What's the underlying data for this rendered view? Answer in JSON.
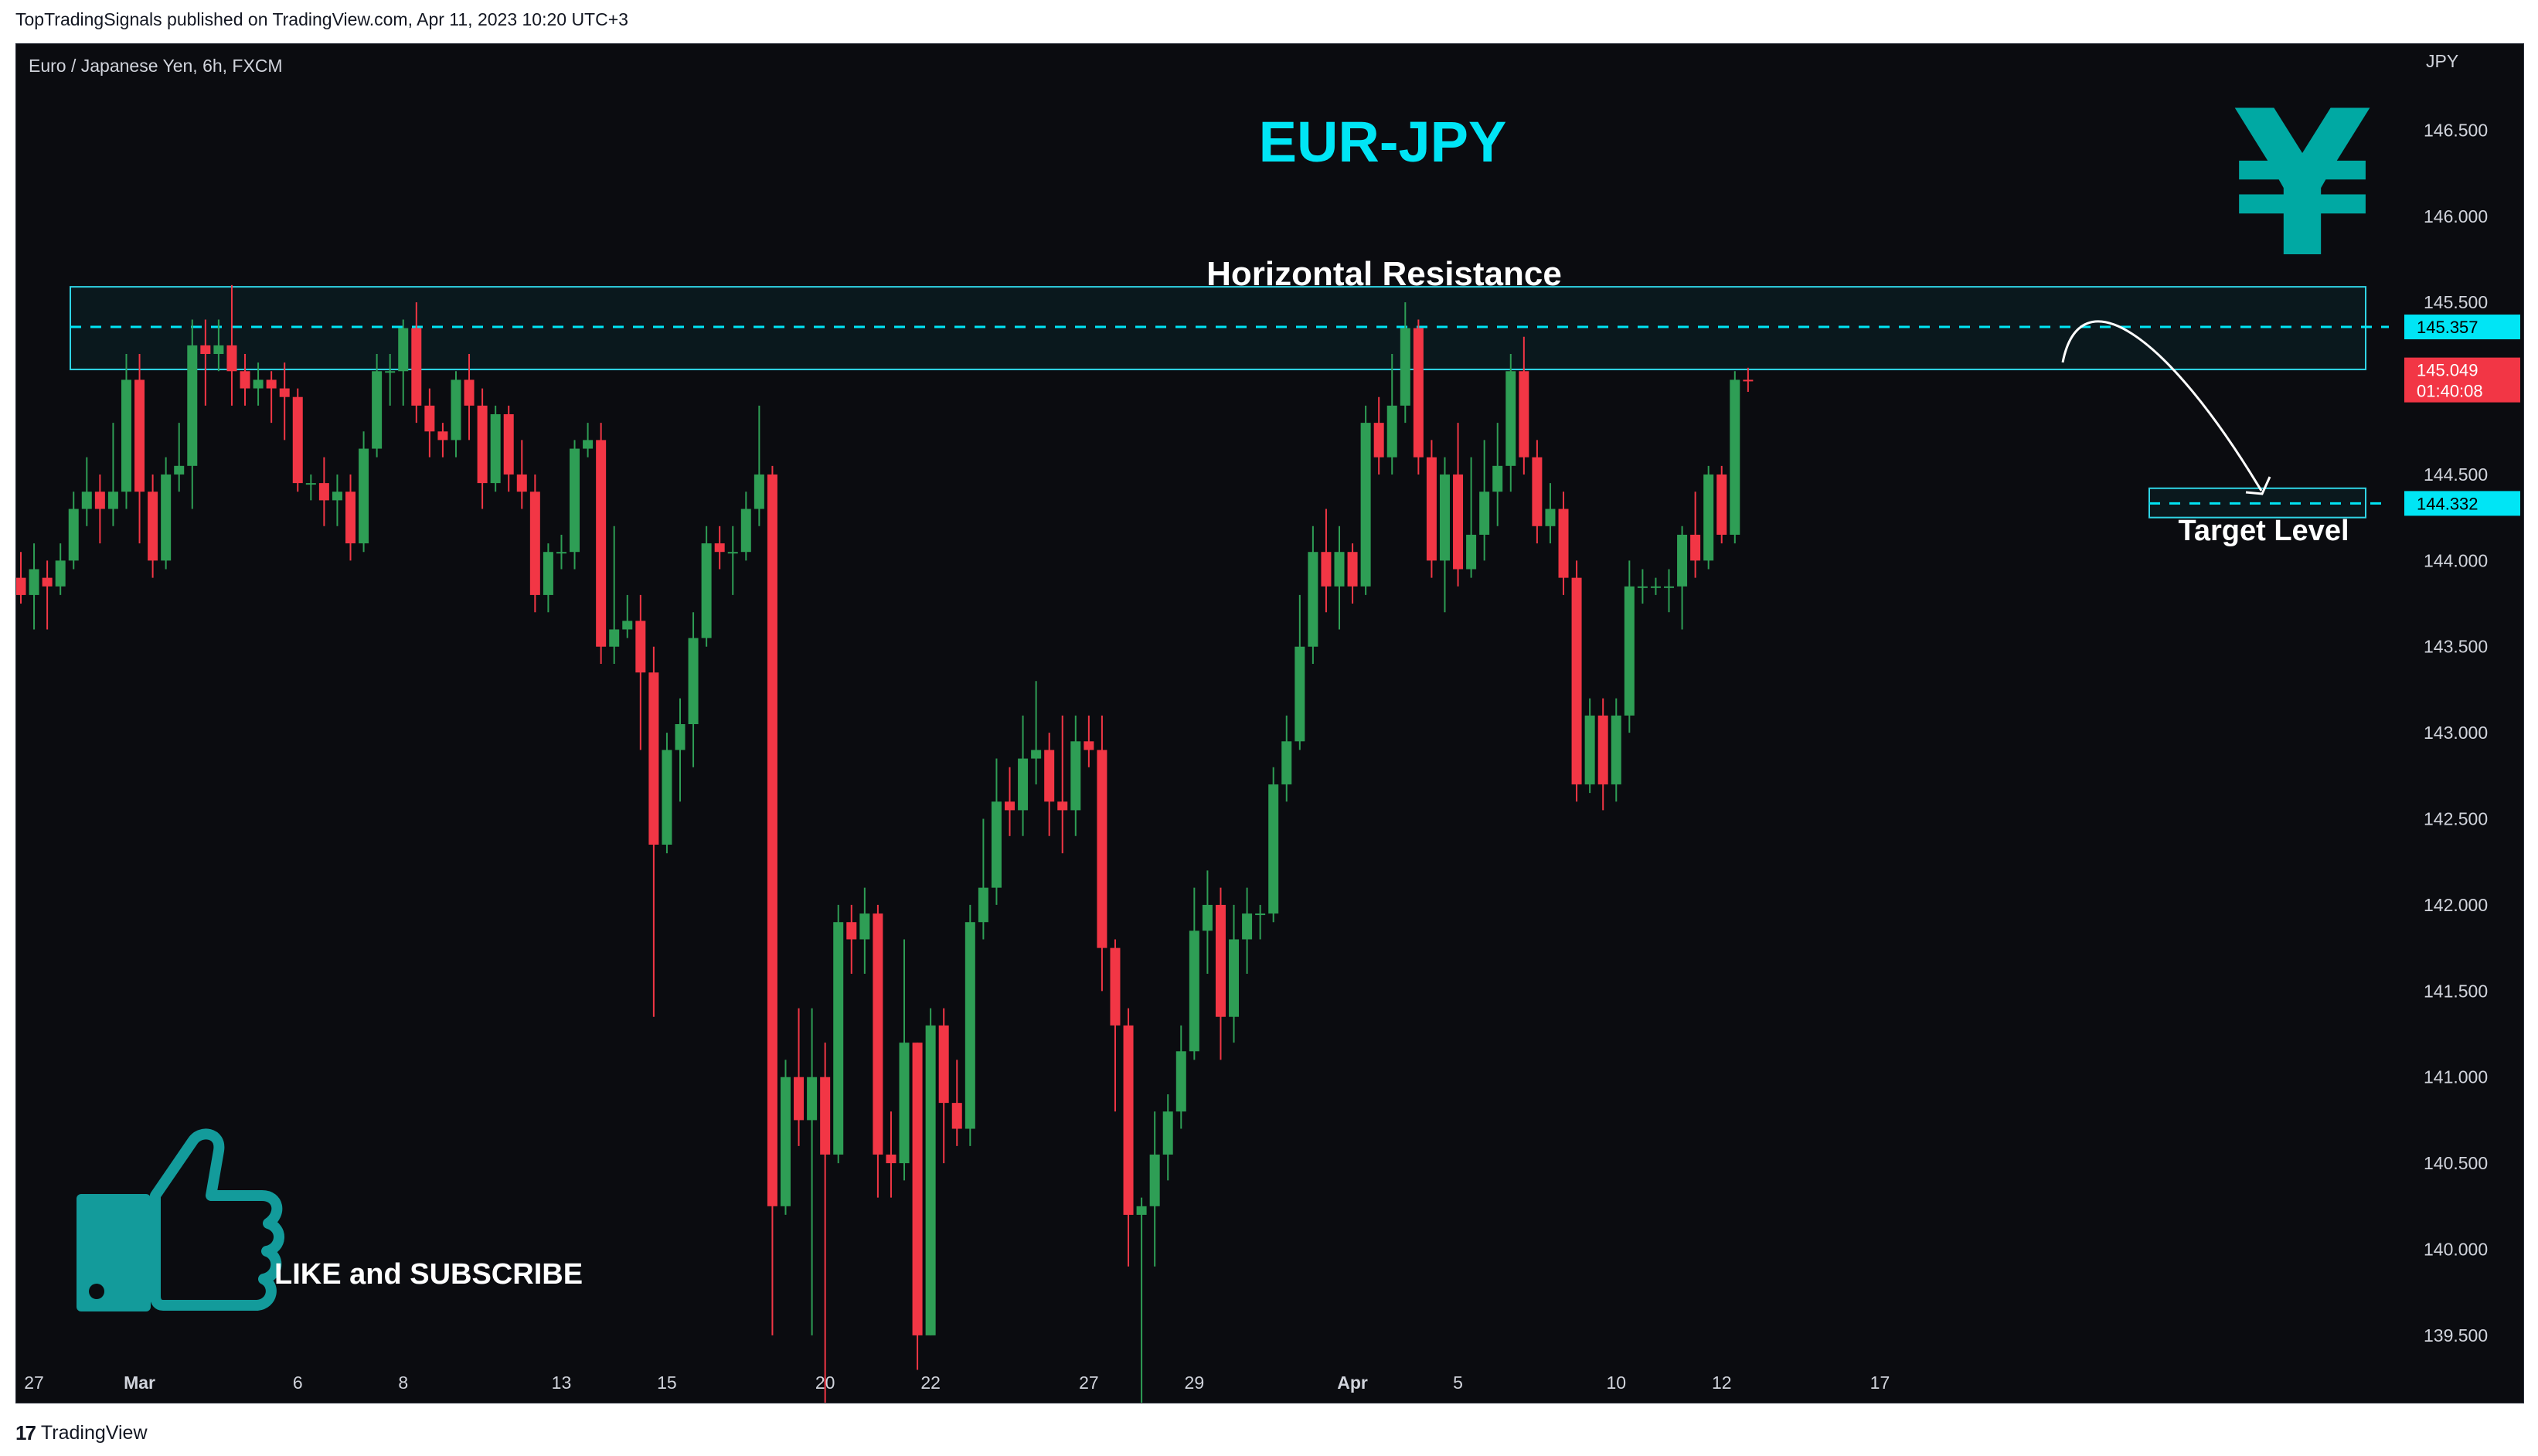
{
  "header": {
    "published_text": "TopTradingSignals published on TradingView.com, Apr 11, 2023 10:20 UTC+3"
  },
  "footer": {
    "brand": "TradingView",
    "logo_glyph": "17"
  },
  "overlay": {
    "symbol_title": "EUR-JPY",
    "resistance_label": "Horizontal Resistance",
    "target_label": "Target Level",
    "cta_label": "LIKE and SUBSCRIBE",
    "yen_glyph": "¥"
  },
  "colors": {
    "background": "#0b0c10",
    "up": "#2e9e55",
    "down": "#f23645",
    "accent": "#00e5f5",
    "thumb": "#139b9b",
    "yen": "#00a9a3",
    "white": "#ffffff",
    "axis_text": "#d1d4dc"
  },
  "chart_data": {
    "type": "candlestick",
    "instrument": "Euro / Japanese Yen, 6h, FXCM",
    "currency_label": "JPY",
    "title": "EUR-JPY",
    "ylim": [
      139.1,
      147.0
    ],
    "y_ticks": [
      "146.500",
      "146.000",
      "145.500",
      "145.000",
      "144.500",
      "144.000",
      "143.500",
      "143.000",
      "142.500",
      "142.000",
      "141.500",
      "141.000",
      "140.500",
      "140.000",
      "139.500"
    ],
    "x_ticks": [
      {
        "label": "27",
        "slot": 1
      },
      {
        "label": "Mar",
        "slot": 9,
        "bold": true
      },
      {
        "label": "6",
        "slot": 21
      },
      {
        "label": "8",
        "slot": 29
      },
      {
        "label": "13",
        "slot": 41
      },
      {
        "label": "15",
        "slot": 49
      },
      {
        "label": "20",
        "slot": 61
      },
      {
        "label": "22",
        "slot": 69
      },
      {
        "label": "27",
        "slot": 81
      },
      {
        "label": "29",
        "slot": 89
      },
      {
        "label": "Apr",
        "slot": 101,
        "bold": true
      },
      {
        "label": "5",
        "slot": 109
      },
      {
        "label": "10",
        "slot": 121
      },
      {
        "label": "12",
        "slot": 129
      },
      {
        "label": "17",
        "slot": 141
      }
    ],
    "candles": [
      [
        143.9,
        143.8,
        144.05,
        143.75
      ],
      [
        143.8,
        143.95,
        144.1,
        143.6
      ],
      [
        143.9,
        143.85,
        144.0,
        143.6
      ],
      [
        143.85,
        144.0,
        144.1,
        143.8
      ],
      [
        144.0,
        144.3,
        144.4,
        143.95
      ],
      [
        144.3,
        144.4,
        144.6,
        144.2
      ],
      [
        144.4,
        144.3,
        144.5,
        144.1
      ],
      [
        144.3,
        144.4,
        144.8,
        144.2
      ],
      [
        144.4,
        145.05,
        145.2,
        144.3
      ],
      [
        145.05,
        144.4,
        145.2,
        144.1
      ],
      [
        144.4,
        144.0,
        144.5,
        143.9
      ],
      [
        144.0,
        144.5,
        144.6,
        143.95
      ],
      [
        144.5,
        144.55,
        144.8,
        144.4
      ],
      [
        144.55,
        145.25,
        145.4,
        144.3
      ],
      [
        145.25,
        145.2,
        145.4,
        144.9
      ],
      [
        145.2,
        145.25,
        145.4,
        145.1
      ],
      [
        145.25,
        145.1,
        145.6,
        144.9
      ],
      [
        145.1,
        145.0,
        145.2,
        144.9
      ],
      [
        145.0,
        145.05,
        145.15,
        144.9
      ],
      [
        145.05,
        145.0,
        145.1,
        144.8
      ],
      [
        145.0,
        144.95,
        145.15,
        144.7
      ],
      [
        144.95,
        144.45,
        145.0,
        144.4
      ],
      [
        144.45,
        144.45,
        144.5,
        144.35
      ],
      [
        144.45,
        144.35,
        144.6,
        144.2
      ],
      [
        144.35,
        144.4,
        144.5,
        144.2
      ],
      [
        144.4,
        144.1,
        144.5,
        144.0
      ],
      [
        144.1,
        144.65,
        144.75,
        144.05
      ],
      [
        144.65,
        145.1,
        145.2,
        144.6
      ],
      [
        145.1,
        145.1,
        145.2,
        144.9
      ],
      [
        145.1,
        145.35,
        145.4,
        144.9
      ],
      [
        145.35,
        144.9,
        145.5,
        144.8
      ],
      [
        144.9,
        144.75,
        145.0,
        144.6
      ],
      [
        144.75,
        144.7,
        144.8,
        144.6
      ],
      [
        144.7,
        145.05,
        145.1,
        144.6
      ],
      [
        145.05,
        144.9,
        145.2,
        144.7
      ],
      [
        144.9,
        144.45,
        145.0,
        144.3
      ],
      [
        144.45,
        144.85,
        144.9,
        144.4
      ],
      [
        144.85,
        144.5,
        144.9,
        144.4
      ],
      [
        144.5,
        144.4,
        144.7,
        144.3
      ],
      [
        144.4,
        143.8,
        144.5,
        143.7
      ],
      [
        143.8,
        144.05,
        144.1,
        143.7
      ],
      [
        144.05,
        144.05,
        144.15,
        143.95
      ],
      [
        144.05,
        144.65,
        144.7,
        143.95
      ],
      [
        144.65,
        144.7,
        144.8,
        144.6
      ],
      [
        144.7,
        143.5,
        144.8,
        143.4
      ],
      [
        143.5,
        143.6,
        144.2,
        143.4
      ],
      [
        143.6,
        143.65,
        143.8,
        143.55
      ],
      [
        143.65,
        143.35,
        143.8,
        142.9
      ],
      [
        143.35,
        142.35,
        143.5,
        141.35
      ],
      [
        142.35,
        142.9,
        143.0,
        142.3
      ],
      [
        142.9,
        143.05,
        143.2,
        142.6
      ],
      [
        143.05,
        143.55,
        143.7,
        142.8
      ],
      [
        143.55,
        144.1,
        144.2,
        143.5
      ],
      [
        144.1,
        144.05,
        144.2,
        143.95
      ],
      [
        144.05,
        144.05,
        144.2,
        143.8
      ],
      [
        144.05,
        144.3,
        144.4,
        144.0
      ],
      [
        144.3,
        144.5,
        144.9,
        144.2
      ],
      [
        144.5,
        140.25,
        144.55,
        139.5
      ],
      [
        140.25,
        141.0,
        141.1,
        140.2
      ],
      [
        141.0,
        140.75,
        141.4,
        140.6
      ],
      [
        140.75,
        141.0,
        141.4,
        139.5
      ],
      [
        141.0,
        140.55,
        141.2,
        139.1
      ],
      [
        140.55,
        141.9,
        142.0,
        140.5
      ],
      [
        141.9,
        141.8,
        142.0,
        141.6
      ],
      [
        141.8,
        141.95,
        142.1,
        141.6
      ],
      [
        141.95,
        140.55,
        142.0,
        140.3
      ],
      [
        140.55,
        140.5,
        140.8,
        140.3
      ],
      [
        140.5,
        141.2,
        141.8,
        140.4
      ],
      [
        141.2,
        139.5,
        141.2,
        139.3
      ],
      [
        139.5,
        141.3,
        141.4,
        139.5
      ],
      [
        141.3,
        140.85,
        141.4,
        140.5
      ],
      [
        140.85,
        140.7,
        141.1,
        140.6
      ],
      [
        140.7,
        141.9,
        142.0,
        140.6
      ],
      [
        141.9,
        142.1,
        142.5,
        141.8
      ],
      [
        142.1,
        142.6,
        142.85,
        142.0
      ],
      [
        142.6,
        142.55,
        142.8,
        142.4
      ],
      [
        142.55,
        142.85,
        143.1,
        142.4
      ],
      [
        142.85,
        142.9,
        143.3,
        142.7
      ],
      [
        142.9,
        142.6,
        143.0,
        142.4
      ],
      [
        142.6,
        142.55,
        143.1,
        142.3
      ],
      [
        142.55,
        142.95,
        143.1,
        142.4
      ],
      [
        142.95,
        142.9,
        143.1,
        142.8
      ],
      [
        142.9,
        141.75,
        143.1,
        141.5
      ],
      [
        141.75,
        141.3,
        141.8,
        140.8
      ],
      [
        141.3,
        140.2,
        141.4,
        139.9
      ],
      [
        140.2,
        140.25,
        140.3,
        139.1
      ],
      [
        140.25,
        140.55,
        140.8,
        139.9
      ],
      [
        140.55,
        140.8,
        140.9,
        140.4
      ],
      [
        140.8,
        141.15,
        141.3,
        140.7
      ],
      [
        141.15,
        141.85,
        142.1,
        141.1
      ],
      [
        141.85,
        142.0,
        142.2,
        141.6
      ],
      [
        142.0,
        141.35,
        142.1,
        141.1
      ],
      [
        141.35,
        141.8,
        142.0,
        141.2
      ],
      [
        141.8,
        141.95,
        142.1,
        141.6
      ],
      [
        141.95,
        141.95,
        142.0,
        141.8
      ],
      [
        141.95,
        142.7,
        142.8,
        141.9
      ],
      [
        142.7,
        142.95,
        143.1,
        142.6
      ],
      [
        142.95,
        143.5,
        143.8,
        142.9
      ],
      [
        143.5,
        144.05,
        144.2,
        143.4
      ],
      [
        144.05,
        143.85,
        144.3,
        143.7
      ],
      [
        143.85,
        144.05,
        144.2,
        143.6
      ],
      [
        144.05,
        143.85,
        144.1,
        143.75
      ],
      [
        143.85,
        144.8,
        144.9,
        143.8
      ],
      [
        144.8,
        144.6,
        144.95,
        144.5
      ],
      [
        144.6,
        144.9,
        145.2,
        144.5
      ],
      [
        144.9,
        145.35,
        145.5,
        144.8
      ],
      [
        145.35,
        144.6,
        145.4,
        144.5
      ],
      [
        144.6,
        144.0,
        144.7,
        143.9
      ],
      [
        144.0,
        144.5,
        144.6,
        143.7
      ],
      [
        144.5,
        143.95,
        144.8,
        143.85
      ],
      [
        143.95,
        144.15,
        144.6,
        143.9
      ],
      [
        144.15,
        144.4,
        144.7,
        144.0
      ],
      [
        144.4,
        144.55,
        144.8,
        144.2
      ],
      [
        144.55,
        145.1,
        145.2,
        144.4
      ],
      [
        145.1,
        144.6,
        145.3,
        144.5
      ],
      [
        144.6,
        144.2,
        144.7,
        144.1
      ],
      [
        144.2,
        144.3,
        144.45,
        144.1
      ],
      [
        144.3,
        143.9,
        144.4,
        143.8
      ],
      [
        143.9,
        142.7,
        144.0,
        142.6
      ],
      [
        142.7,
        143.1,
        143.2,
        142.65
      ],
      [
        143.1,
        142.7,
        143.2,
        142.55
      ],
      [
        142.7,
        143.1,
        143.2,
        142.6
      ],
      [
        143.1,
        143.85,
        144.0,
        143.0
      ],
      [
        143.85,
        143.85,
        143.95,
        143.75
      ],
      [
        143.85,
        143.85,
        143.9,
        143.8
      ],
      [
        143.85,
        143.85,
        143.95,
        143.7
      ],
      [
        143.85,
        144.15,
        144.2,
        143.6
      ],
      [
        144.15,
        144.0,
        144.4,
        143.9
      ],
      [
        144.0,
        144.5,
        144.55,
        143.95
      ],
      [
        144.5,
        144.15,
        144.55,
        144.1
      ],
      [
        144.15,
        145.05,
        145.1,
        144.1
      ],
      [
        145.05,
        145.049,
        145.12,
        144.98
      ]
    ],
    "resistance_zone": [
      145.11,
      145.59
    ],
    "resistance_level": 145.357,
    "target_level": 144.332,
    "target_zone": [
      144.25,
      144.42
    ],
    "current_price": "145.049",
    "countdown": "01:40:08",
    "resistance_tag": "145.357",
    "target_tag": "144.332"
  }
}
